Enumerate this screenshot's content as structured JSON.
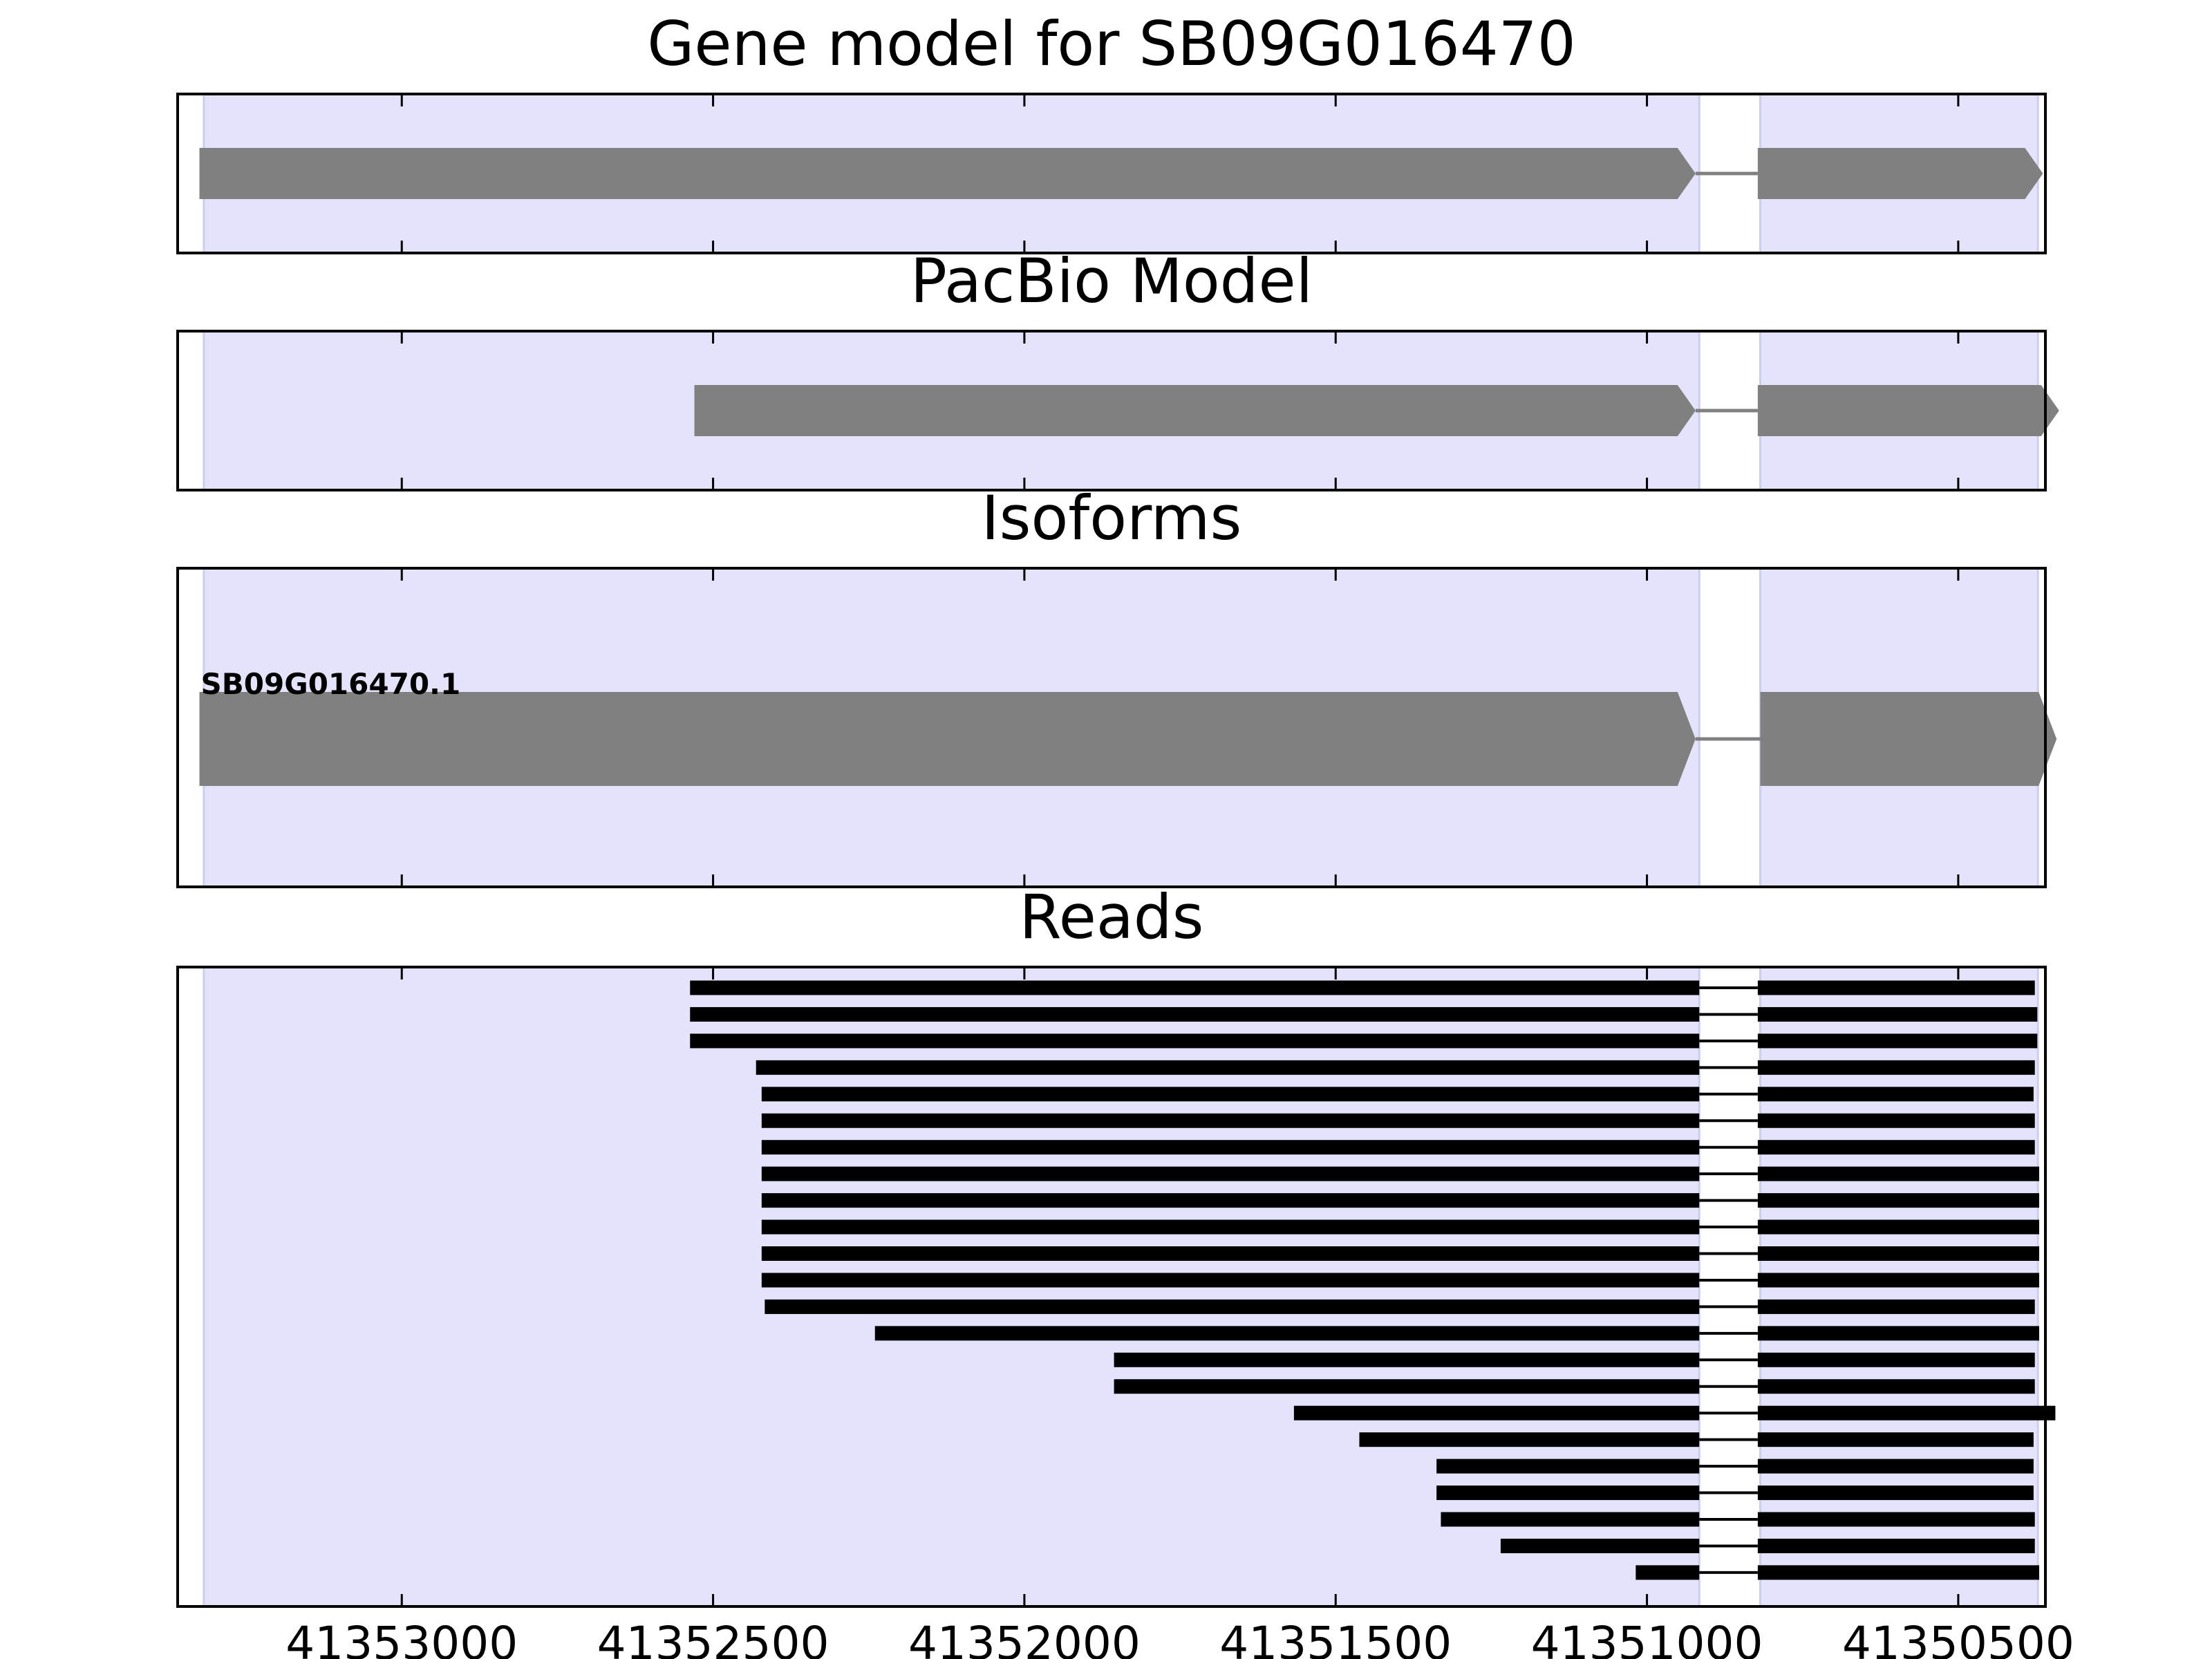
{
  "figure": {
    "background": "#ffffff",
    "exon_region_color": "#e3e3fc",
    "exon_region_edge_color": "#cdcdee",
    "model_color": "#808080",
    "read_color": "#000000",
    "axis_color": "#000000"
  },
  "chart_data": {
    "type": "gene-track",
    "x_axis": {
      "reversed": true,
      "range": [
        41353360,
        41350360
      ],
      "ticks": [
        41353000,
        41352500,
        41352000,
        41351500,
        41351000,
        41350500
      ],
      "tick_labels": [
        "41353000",
        "41352500",
        "41352000",
        "41351500",
        "41351000",
        "41350500"
      ]
    },
    "exon_regions": [
      {
        "start": 41353318,
        "end": 41350916
      },
      {
        "start": 41350818,
        "end": 41350372
      }
    ],
    "panels": [
      {
        "key": "gene_model",
        "title": "Gene model for SB09G016470",
        "strand": "-",
        "exons": [
          {
            "start": 41353325,
            "end": 41350922
          },
          {
            "start": 41350822,
            "end": 41350364
          }
        ]
      },
      {
        "key": "pacbio_model",
        "title": "PacBio Model",
        "strand": "-",
        "exons": [
          {
            "start": 41352530,
            "end": 41350922
          },
          {
            "start": 41350822,
            "end": 41350338
          }
        ]
      },
      {
        "key": "isoforms",
        "title": "Isoforms",
        "strand": "-",
        "isoforms": [
          {
            "name": "SB09G016470.1",
            "exons": [
              {
                "start": 41353325,
                "end": 41350922
              },
              {
                "start": 41350818,
                "end": 41350342
              }
            ]
          }
        ]
      },
      {
        "key": "reads",
        "title": "Reads",
        "reads": [
          {
            "exons": [
              {
                "start": 41352537,
                "end": 41350916
              },
              {
                "start": 41350822,
                "end": 41350377
              }
            ]
          },
          {
            "exons": [
              {
                "start": 41352537,
                "end": 41350916
              },
              {
                "start": 41350822,
                "end": 41350373
              }
            ]
          },
          {
            "exons": [
              {
                "start": 41352537,
                "end": 41350916
              },
              {
                "start": 41350822,
                "end": 41350373
              }
            ]
          },
          {
            "exons": [
              {
                "start": 41352431,
                "end": 41350916
              },
              {
                "start": 41350822,
                "end": 41350377
              }
            ]
          },
          {
            "exons": [
              {
                "start": 41352422,
                "end": 41350916
              },
              {
                "start": 41350822,
                "end": 41350379
              }
            ]
          },
          {
            "exons": [
              {
                "start": 41352422,
                "end": 41350916
              },
              {
                "start": 41350822,
                "end": 41350377
              }
            ]
          },
          {
            "exons": [
              {
                "start": 41352422,
                "end": 41350916
              },
              {
                "start": 41350822,
                "end": 41350377
              }
            ]
          },
          {
            "exons": [
              {
                "start": 41352422,
                "end": 41350916
              },
              {
                "start": 41350822,
                "end": 41350370
              }
            ]
          },
          {
            "exons": [
              {
                "start": 41352422,
                "end": 41350916
              },
              {
                "start": 41350822,
                "end": 41350370
              }
            ]
          },
          {
            "exons": [
              {
                "start": 41352422,
                "end": 41350916
              },
              {
                "start": 41350822,
                "end": 41350370
              }
            ]
          },
          {
            "exons": [
              {
                "start": 41352422,
                "end": 41350916
              },
              {
                "start": 41350822,
                "end": 41350370
              }
            ]
          },
          {
            "exons": [
              {
                "start": 41352422,
                "end": 41350916
              },
              {
                "start": 41350822,
                "end": 41350370
              }
            ]
          },
          {
            "exons": [
              {
                "start": 41352417,
                "end": 41350916
              },
              {
                "start": 41350822,
                "end": 41350377
              }
            ]
          },
          {
            "exons": [
              {
                "start": 41352240,
                "end": 41350916
              },
              {
                "start": 41350822,
                "end": 41350370
              }
            ]
          },
          {
            "exons": [
              {
                "start": 41351856,
                "end": 41350916
              },
              {
                "start": 41350822,
                "end": 41350377
              }
            ]
          },
          {
            "exons": [
              {
                "start": 41351856,
                "end": 41350916
              },
              {
                "start": 41350822,
                "end": 41350377
              }
            ]
          },
          {
            "exons": [
              {
                "start": 41351567,
                "end": 41350916
              },
              {
                "start": 41350822,
                "end": 41350344
              }
            ]
          },
          {
            "exons": [
              {
                "start": 41351462,
                "end": 41350916
              },
              {
                "start": 41350822,
                "end": 41350379
              }
            ]
          },
          {
            "exons": [
              {
                "start": 41351338,
                "end": 41350916
              },
              {
                "start": 41350822,
                "end": 41350379
              }
            ]
          },
          {
            "exons": [
              {
                "start": 41351338,
                "end": 41350916
              },
              {
                "start": 41350822,
                "end": 41350379
              }
            ]
          },
          {
            "exons": [
              {
                "start": 41351331,
                "end": 41350916
              },
              {
                "start": 41350822,
                "end": 41350377
              }
            ]
          },
          {
            "exons": [
              {
                "start": 41351235,
                "end": 41350916
              },
              {
                "start": 41350822,
                "end": 41350377
              }
            ]
          },
          {
            "exons": [
              {
                "start": 41351018,
                "end": 41350916
              },
              {
                "start": 41350822,
                "end": 41350370
              }
            ]
          }
        ]
      }
    ]
  }
}
